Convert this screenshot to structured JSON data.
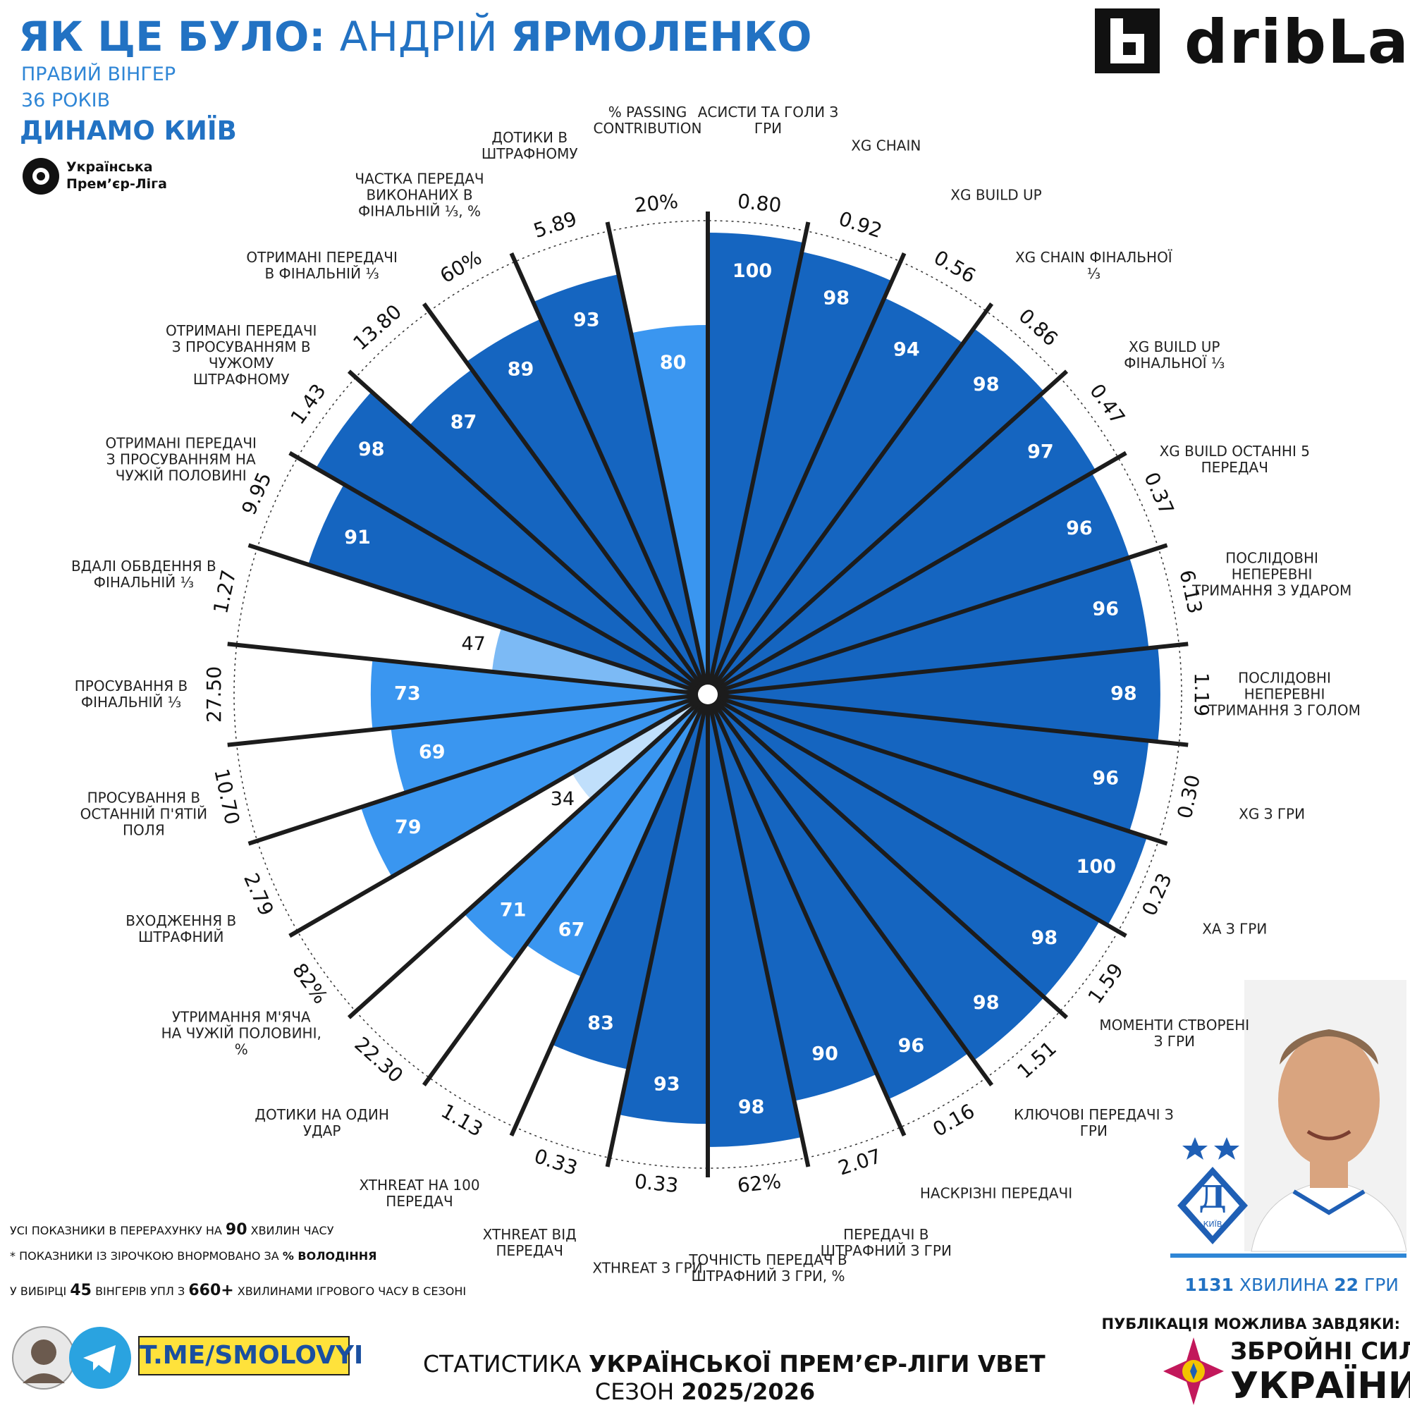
{
  "header": {
    "title_parts": [
      "ЯК ЦЕ БУЛО: ",
      "АНДРІЙ ",
      "ЯРМОЛЕНКО"
    ],
    "position": "ПРАВИЙ ВІНГЕР",
    "age": "36 РОКІВ",
    "club": "ДИНАМО КИЇВ",
    "league": [
      "Українська",
      "Прем’єр-Ліга"
    ],
    "brand": "dribLab"
  },
  "chart_data": {
    "type": "pizza",
    "rlim": [
      0,
      100
    ],
    "categories": [
      "АСИСТИ ТА ГОЛИ З ГРИ",
      "XG CHAIN",
      "XG BUILD UP",
      "XG CHAIN ФІНАЛЬНОЇ ⅓",
      "XG BUILD UP ФІНАЛЬНОЇ ⅓",
      "XG BUILD ОСТАННІ 5 ПЕРЕДАЧ",
      "ПОСЛІДОВНІ НЕПЕРЕВНІ ТРИМАННЯ З УДАРОМ",
      "ПОСЛІДОВНІ НЕПЕРЕВНІ ТРИМАННЯ З ГОЛОМ",
      "XG З ГРИ",
      "XA З ГРИ",
      "МОМЕНТИ СТВОРЕНІ З ГРИ",
      "КЛЮЧОВІ ПЕРЕДАЧІ З ГРИ",
      "НАСКРІЗНІ ПЕРЕДАЧІ",
      "ПЕРЕДАЧІ В ШТРАФНИЙ З ГРИ",
      "ТОЧНІСТЬ ПЕРЕДАЧ В ШТРАФНИЙ З ГРИ, %",
      "XTHREAT З ГРИ",
      "XTHREAT ВІД ПЕРЕДАЧ",
      "XTHREAT НА 100 ПЕРЕДАЧ",
      "ДОТИКИ НА ОДИН УДАР",
      "УТРИМАННЯ М'ЯЧА НА ЧУЖІЙ ПОЛОВИНІ, %",
      "ВХОДЖЕННЯ В ШТРАФНИЙ",
      "ПРОСУВАННЯ В ОСТАННІЙ П'ЯТІЙ ПОЛЯ",
      "ПРОСУВАННЯ В ФІНАЛЬНІЙ ⅓",
      "ВДАЛІ ОБВДЕННЯ В ФІНАЛЬНІЙ ⅓",
      "ОТРИМАНІ ПЕРЕДАЧІ З ПРОСУВАННЯМ НА ЧУЖІЙ ПОЛОВИНІ",
      "ОТРИМАНІ ПЕРЕДАЧІ З ПРОСУВАННЯМ В ЧУЖОМУ ШТРАФНОМУ",
      "ОТРИМАНІ ПЕРЕДАЧІ В ФІНАЛЬНІЙ ⅓",
      "ЧАСТКА ПЕРЕДАЧ ВИКОНАНИХ В ФІНАЛЬНІЙ ⅓, %",
      "ДОТИКИ В ШТРАФНОМУ",
      "% PASSING CONTRIBUTION"
    ],
    "values": [
      100,
      98,
      94,
      98,
      97,
      96,
      96,
      98,
      96,
      100,
      98,
      98,
      96,
      90,
      98,
      93,
      83,
      67,
      71,
      34,
      79,
      69,
      73,
      47,
      91,
      98,
      87,
      89,
      93,
      80
    ],
    "raw_labels": [
      "0.80",
      "0.92",
      "0.56",
      "0.86",
      "0.47",
      "0.37",
      "6.13",
      "1.19",
      "0.30",
      "0.23",
      "1.59",
      "1.51",
      "0.16",
      "2.07",
      "62%",
      "0.33",
      "0.33",
      "1.13",
      "22.30",
      "82%",
      "2.79",
      "10.70",
      "27.50",
      "1.27",
      "9.95",
      "1.43",
      "13.80",
      "60%",
      "5.89",
      "20%"
    ],
    "colors": [
      "#1565c0",
      "#1565c0",
      "#1565c0",
      "#1565c0",
      "#1565c0",
      "#1565c0",
      "#1565c0",
      "#1565c0",
      "#1565c0",
      "#1565c0",
      "#1565c0",
      "#1565c0",
      "#1565c0",
      "#1565c0",
      "#1565c0",
      "#1565c0",
      "#1565c0",
      "#3a96f0",
      "#3a96f0",
      "#c0dffb",
      "#3a96f0",
      "#3a96f0",
      "#3a96f0",
      "#7cbaf5",
      "#1565c0",
      "#1565c0",
      "#1565c0",
      "#1565c0",
      "#1565c0",
      "#3a96f0"
    ]
  },
  "notes": [
    [
      "УСІ ПОКАЗНИКИ В ПЕРЕРАХУНКУ НА ",
      "90",
      " ХВИЛИН ЧАСУ"
    ],
    [
      "* ПОКАЗНИКИ ІЗ ЗІРОЧКОЮ ВНОРМОВАНО ЗА ",
      "% ВОЛОДІННЯ"
    ],
    [
      "У ВИБІРЦІ ",
      "45",
      " ВІНГЕРІВ УПЛ З ",
      "660+",
      " ХВИЛИНАМИ ІГРОВОГО ЧАСУ В СЕЗОНІ"
    ]
  ],
  "telegram": "T.ME/SMOLOVYI",
  "footer": {
    "line1": [
      "СТАТИСТИКА ",
      "УКРАЇНСЬКОЇ ПРЕМ’ЄР-ЛІГИ VBET"
    ],
    "line2": [
      "СЕЗОН ",
      "2025/2026"
    ]
  },
  "player_info": {
    "parts": [
      "1131",
      " ХВИЛИНА ",
      "22",
      " ГРИ"
    ],
    "club_badge": "КИЇВ"
  },
  "sponsor": {
    "intro": "ПУБЛІКАЦІЯ МОЖЛИВА ЗАВДЯКИ:",
    "name1": "ЗБРОЙНІ СИЛИ",
    "name2": "УКРАЇНИ"
  }
}
